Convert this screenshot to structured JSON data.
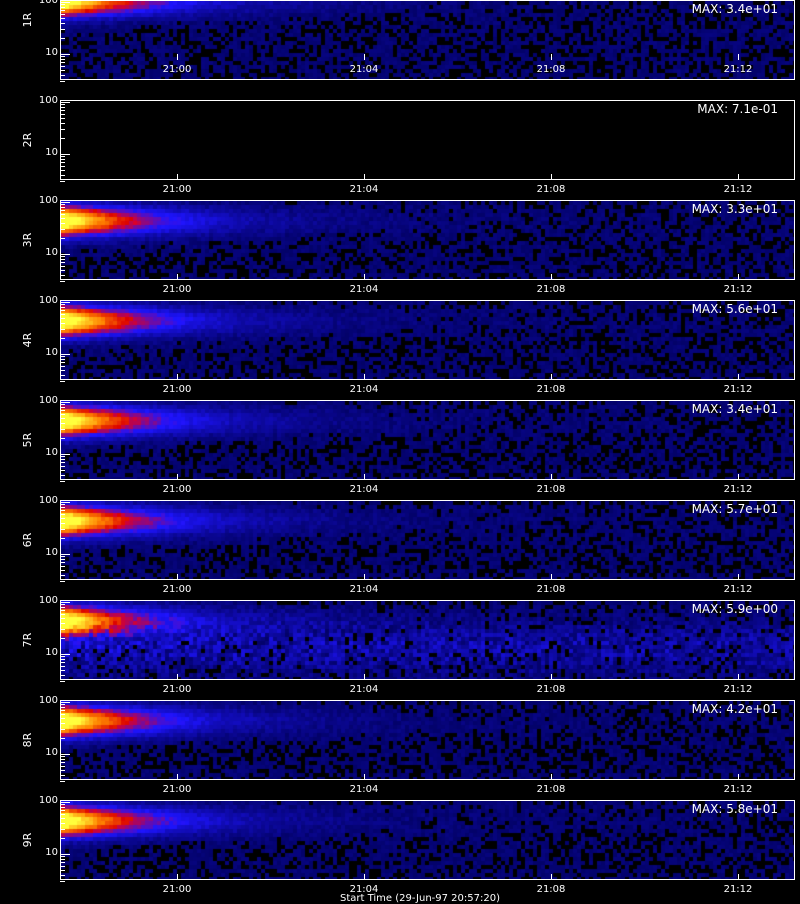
{
  "x_ticks": [
    "21:00",
    "21:04",
    "21:08",
    "21:12"
  ],
  "y_ticks": [
    "100",
    "10"
  ],
  "footer": "Start Time (29-Jun-97 20:57:20)",
  "colors": {
    "background": "#000000",
    "axis": "#ffffff"
  },
  "chart_data": [
    {
      "type": "heatmap",
      "ylabel": "1R",
      "max_label": "MAX: 3.4e+01",
      "max": 34,
      "xlim": [
        "20:57:30",
        "21:13:30"
      ],
      "ylog": true,
      "ylim": [
        3,
        110
      ],
      "intensity": 1.0
    },
    {
      "type": "heatmap",
      "ylabel": "2R",
      "max_label": "MAX: 7.1e-01",
      "max": 0.71,
      "xlim": [
        "20:57:30",
        "21:13:30"
      ],
      "ylog": true,
      "ylim": [
        3,
        110
      ],
      "intensity": 0.0
    },
    {
      "type": "heatmap",
      "ylabel": "3R",
      "max_label": "MAX: 3.3e+01",
      "max": 33,
      "xlim": [
        "20:57:30",
        "21:13:30"
      ],
      "ylog": true,
      "ylim": [
        3,
        110
      ],
      "intensity": 1.0
    },
    {
      "type": "heatmap",
      "ylabel": "4R",
      "max_label": "MAX: 5.6e+01",
      "max": 56,
      "xlim": [
        "20:57:30",
        "21:13:30"
      ],
      "ylog": true,
      "ylim": [
        3,
        110
      ],
      "intensity": 1.0
    },
    {
      "type": "heatmap",
      "ylabel": "5R",
      "max_label": "MAX: 3.4e+01",
      "max": 34,
      "xlim": [
        "20:57:30",
        "21:13:30"
      ],
      "ylog": true,
      "ylim": [
        3,
        110
      ],
      "intensity": 1.0
    },
    {
      "type": "heatmap",
      "ylabel": "6R",
      "max_label": "MAX: 5.7e+01",
      "max": 57,
      "xlim": [
        "20:57:30",
        "21:13:30"
      ],
      "ylog": true,
      "ylim": [
        3,
        110
      ],
      "intensity": 1.0
    },
    {
      "type": "heatmap",
      "ylabel": "7R",
      "max_label": "MAX: 5.9e+00",
      "max": 5.9,
      "xlim": [
        "20:57:30",
        "21:13:30"
      ],
      "ylog": true,
      "ylim": [
        3,
        110
      ],
      "intensity": 1.0,
      "noisy": true
    },
    {
      "type": "heatmap",
      "ylabel": "8R",
      "max_label": "MAX: 4.2e+01",
      "max": 42,
      "xlim": [
        "20:57:30",
        "21:13:30"
      ],
      "ylog": true,
      "ylim": [
        3,
        110
      ],
      "intensity": 1.0
    },
    {
      "type": "heatmap",
      "ylabel": "9R",
      "max_label": "MAX: 5.8e+01",
      "max": 58,
      "xlim": [
        "20:57:30",
        "21:13:30"
      ],
      "ylog": true,
      "ylim": [
        3,
        110
      ],
      "intensity": 1.0
    }
  ]
}
